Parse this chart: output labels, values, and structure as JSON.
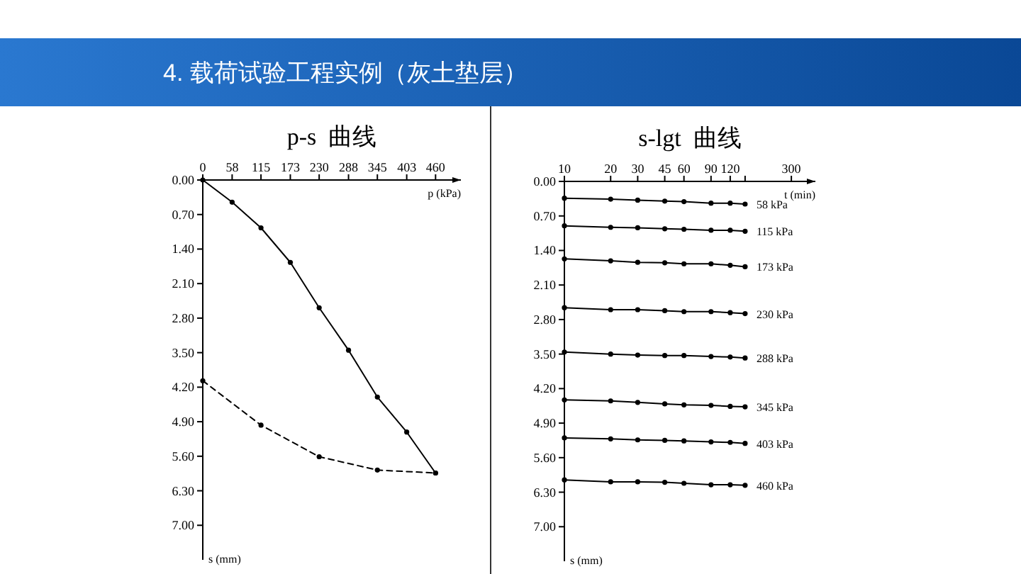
{
  "chart_data": [
    {
      "type": "line",
      "title": "p-s  曲线",
      "xlabel": "p (kPa)",
      "ylabel": "s (mm)",
      "annotations": [
        "4. 载荷试验工程实例（灰土垫层）"
      ],
      "marker": "circle",
      "grid": false,
      "xlim": [
        0,
        510
      ],
      "xticks": [
        0,
        58,
        115,
        173,
        230,
        288,
        345,
        403,
        460
      ],
      "ylim": [
        7.7,
        0
      ],
      "yticks": [
        {
          "value": 0,
          "label": "0.00"
        },
        {
          "value": 0.7,
          "label": "0.70"
        },
        {
          "value": 1.4,
          "label": "1.40"
        },
        {
          "value": 2.1,
          "label": "2.10"
        },
        {
          "value": 2.8,
          "label": "2.80"
        },
        {
          "value": 3.5,
          "label": "3.50"
        },
        {
          "value": 4.2,
          "label": "4.20"
        },
        {
          "value": 4.9,
          "label": "4.90"
        },
        {
          "value": 5.6,
          "label": "5.60"
        },
        {
          "value": 6.3,
          "label": "6.30"
        },
        {
          "value": 7,
          "label": "7.00"
        }
      ],
      "series": [
        {
          "color": "#000000",
          "line_style": "solid",
          "x": [
            0,
            58,
            115,
            173,
            230,
            288,
            345,
            403,
            460
          ],
          "values": [
            0,
            0.45,
            0.97,
            1.67,
            2.59,
            3.45,
            4.4,
            5.11,
            5.94
          ]
        },
        {
          "color": "#000000",
          "line_style": "dashed",
          "x": [
            0,
            115,
            230,
            345,
            460
          ],
          "values": [
            4.07,
            4.97,
            5.61,
            5.88,
            5.94
          ]
        }
      ]
    },
    {
      "type": "line",
      "title": "s-lgt  曲线",
      "xlabel": "t (min)",
      "ylabel": "s (mm)",
      "marker": "circle",
      "grid": false,
      "log": "x",
      "xlim": [
        10,
        430
      ],
      "xticks": [
        10,
        20,
        30,
        45,
        60,
        90,
        120,
        {
          "value": 150,
          "label": null
        },
        300
      ],
      "ylim": [
        7.7,
        0
      ],
      "yticks": [
        {
          "value": 0,
          "label": "0.00"
        },
        {
          "value": 0.7,
          "label": "0.70"
        },
        {
          "value": 1.4,
          "label": "1.40"
        },
        {
          "value": 2.1,
          "label": "2.10"
        },
        {
          "value": 2.8,
          "label": "2.80"
        },
        {
          "value": 3.5,
          "label": "3.50"
        },
        {
          "value": 4.2,
          "label": "4.20"
        },
        {
          "value": 4.9,
          "label": "4.90"
        },
        {
          "value": 5.6,
          "label": "5.60"
        },
        {
          "value": 6.3,
          "label": "6.30"
        },
        {
          "value": 7,
          "label": "7.00"
        }
      ],
      "x": [
        10,
        20,
        30,
        45,
        60,
        90,
        120,
        150
      ],
      "series": [
        {
          "name": "58 kPa",
          "color": "#000000",
          "values": [
            0.34,
            0.36,
            0.38,
            0.4,
            0.41,
            0.44,
            0.44,
            0.46
          ]
        },
        {
          "name": "115 kPa",
          "color": "#000000",
          "values": [
            0.9,
            0.93,
            0.94,
            0.96,
            0.97,
            0.99,
            0.99,
            1.01
          ]
        },
        {
          "name": "173 kPa",
          "color": "#000000",
          "values": [
            1.57,
            1.61,
            1.64,
            1.65,
            1.67,
            1.67,
            1.7,
            1.73
          ]
        },
        {
          "name": "230 kPa",
          "color": "#000000",
          "values": [
            2.56,
            2.6,
            2.6,
            2.62,
            2.64,
            2.64,
            2.66,
            2.68
          ]
        },
        {
          "name": "288 kPa",
          "color": "#000000",
          "values": [
            3.46,
            3.5,
            3.52,
            3.53,
            3.53,
            3.55,
            3.56,
            3.58
          ]
        },
        {
          "name": "345 kPa",
          "color": "#000000",
          "values": [
            4.43,
            4.45,
            4.48,
            4.51,
            4.53,
            4.54,
            4.56,
            4.57
          ]
        },
        {
          "name": "403 kPa",
          "color": "#000000",
          "values": [
            5.2,
            5.22,
            5.24,
            5.25,
            5.26,
            5.28,
            5.29,
            5.31
          ]
        },
        {
          "name": "460 kPa",
          "color": "#000000",
          "values": [
            6.05,
            6.09,
            6.09,
            6.1,
            6.12,
            6.15,
            6.15,
            6.16
          ]
        }
      ]
    }
  ]
}
